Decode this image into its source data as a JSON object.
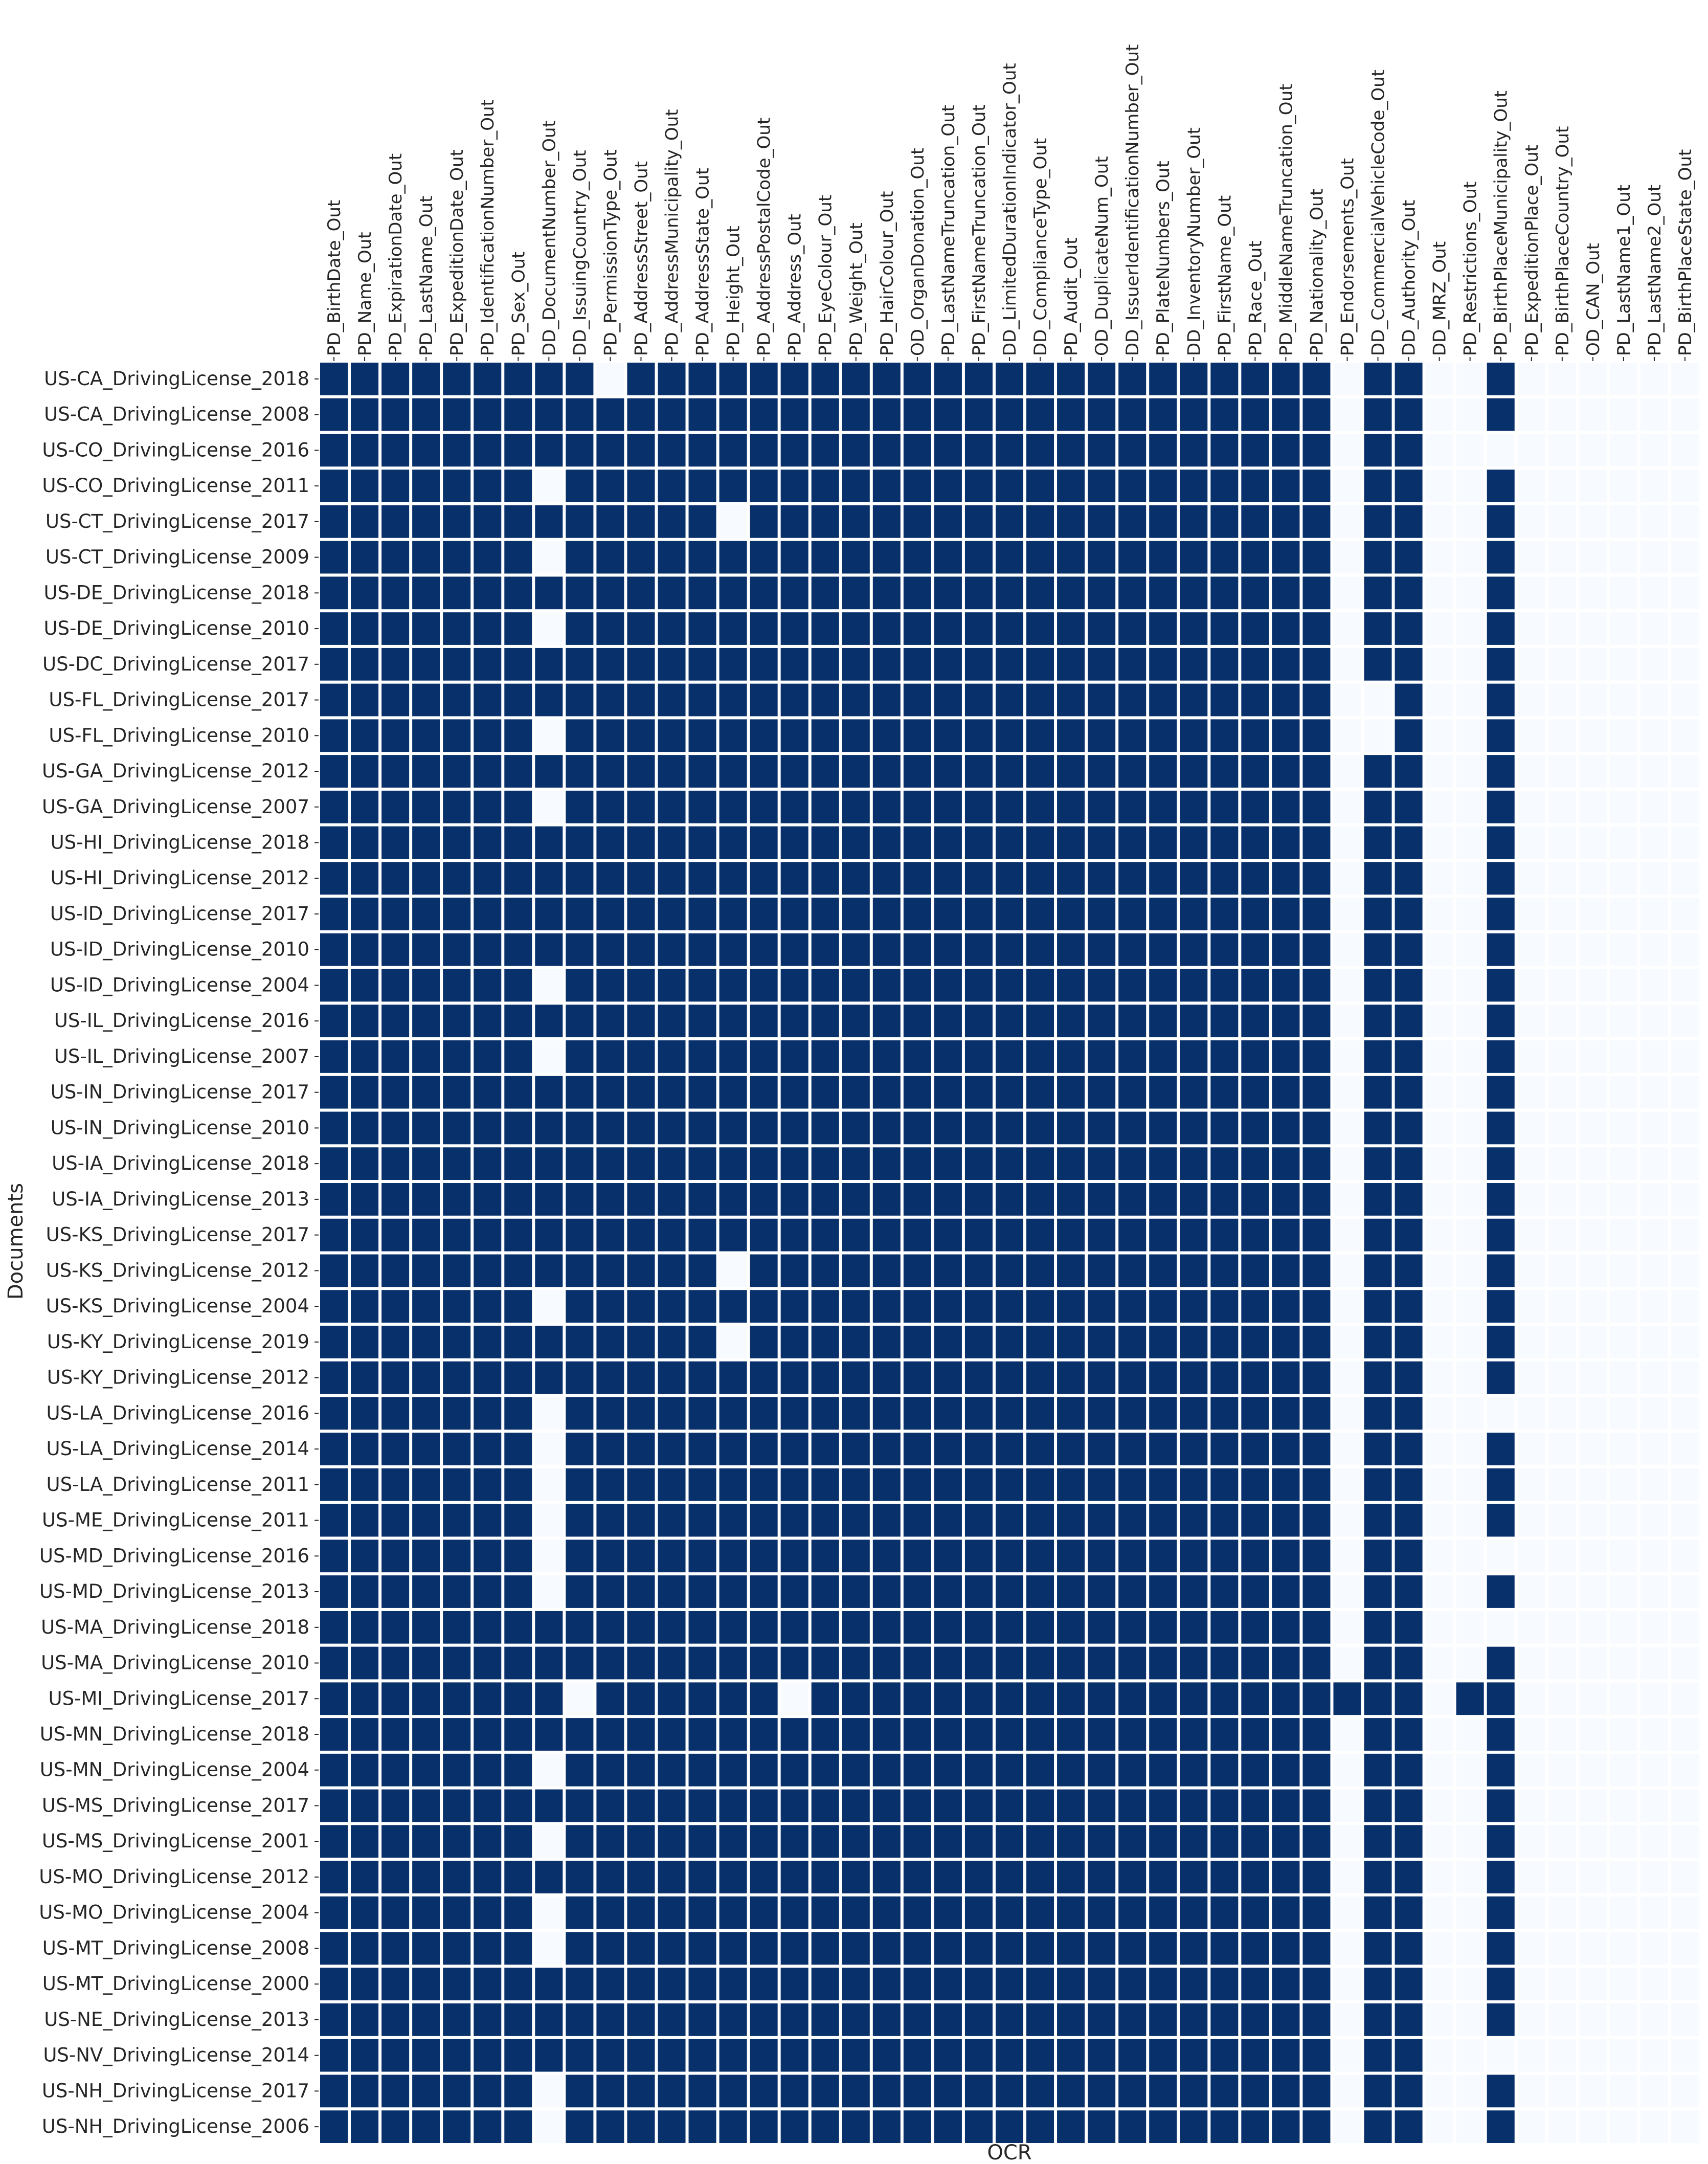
{
  "chart_data": {
    "type": "heatmap",
    "xlabel": "OCR",
    "ylabel": "Documents",
    "title": "",
    "colormap": "Blues",
    "colors": {
      "present": "#08306b",
      "absent": "#f7fbff",
      "gridline": "#ffffff",
      "text": "#262626"
    },
    "columns": [
      "PD_BirthDate_Out",
      "PD_Name_Out",
      "PD_ExpirationDate_Out",
      "PD_LastName_Out",
      "PD_ExpeditionDate_Out",
      "PD_IdentificationNumber_Out",
      "PD_Sex_Out",
      "DD_DocumentNumber_Out",
      "DD_IssuingCountry_Out",
      "PD_PermissionType_Out",
      "PD_AddressStreet_Out",
      "PD_AddressMunicipality_Out",
      "PD_AddressState_Out",
      "PD_Height_Out",
      "PD_AddressPostalCode_Out",
      "PD_Address_Out",
      "PD_EyeColour_Out",
      "PD_Weight_Out",
      "PD_HairColour_Out",
      "OD_OrganDonation_Out",
      "PD_LastNameTruncation_Out",
      "PD_FirstNameTruncation_Out",
      "DD_LimitedDurationIndicator_Out",
      "DD_ComplianceType_Out",
      "PD_Audit_Out",
      "OD_DuplicateNum_Out",
      "DD_IssuerIdentificationNumber_Out",
      "PD_PlateNumbers_Out",
      "DD_InventoryNumber_Out",
      "PD_FirstName_Out",
      "PD_Race_Out",
      "PD_MiddleNameTruncation_Out",
      "PD_Nationality_Out",
      "PD_Endorsements_Out",
      "DD_CommercialVehicleCode_Out",
      "DD_Authority_Out",
      "DD_MRZ_Out",
      "PD_Restrictions_Out",
      "PD_BirthPlaceMunicipality_Out",
      "PD_ExpeditionPlace_Out",
      "PD_BirthPlaceCountry_Out",
      "OD_CAN_Out",
      "PD_LastName1_Out",
      "PD_LastName2_Out",
      "PD_BirthPlaceState_Out"
    ],
    "rows": [
      {
        "label": "US-CA_DrivingLicense_2018",
        "values": "111111111011111111111111111111111011001000000"
      },
      {
        "label": "US-CA_DrivingLicense_2008",
        "values": "111111111111111111111111111111111011001000000"
      },
      {
        "label": "US-CO_DrivingLicense_2016",
        "values": "111111111111111111111111111111111011000000000"
      },
      {
        "label": "US-CO_DrivingLicense_2011",
        "values": "111111101111111111111111111111111011001000000"
      },
      {
        "label": "US-CT_DrivingLicense_2017",
        "values": "111111111111101111111111111111111011001000000"
      },
      {
        "label": "US-CT_DrivingLicense_2009",
        "values": "111111101111111111111111111111111011001000000"
      },
      {
        "label": "US-DE_DrivingLicense_2018",
        "values": "111111111111111111111111111111111011001000000"
      },
      {
        "label": "US-DE_DrivingLicense_2010",
        "values": "111111101111111111111111111111111011001000000"
      },
      {
        "label": "US-DC_DrivingLicense_2017",
        "values": "111111111111111111111111111111111011001000000"
      },
      {
        "label": "US-FL_DrivingLicense_2017",
        "values": "111111111111111111111111111111111001001000000"
      },
      {
        "label": "US-FL_DrivingLicense_2010",
        "values": "111111101111111111111111111111111001001000000"
      },
      {
        "label": "US-GA_DrivingLicense_2012",
        "values": "111111111111111111111111111111111011001000000"
      },
      {
        "label": "US-GA_DrivingLicense_2007",
        "values": "111111101111111111111111111111111011001000000"
      },
      {
        "label": "US-HI_DrivingLicense_2018",
        "values": "111111111111111111111111111111111011001000000"
      },
      {
        "label": "US-HI_DrivingLicense_2012",
        "values": "111111111111111111111111111111111011001000000"
      },
      {
        "label": "US-ID_DrivingLicense_2017",
        "values": "111111111111111111111111111111111011001000000"
      },
      {
        "label": "US-ID_DrivingLicense_2010",
        "values": "111111111111111111111111111111111011001000000"
      },
      {
        "label": "US-ID_DrivingLicense_2004",
        "values": "111111101111111111111111111111111011001000000"
      },
      {
        "label": "US-IL_DrivingLicense_2016",
        "values": "111111111111111111111111111111111011001000000"
      },
      {
        "label": "US-IL_DrivingLicense_2007",
        "values": "111111101111111111111111111111111011001000000"
      },
      {
        "label": "US-IN_DrivingLicense_2017",
        "values": "111111111111111111111111111111111011001000000"
      },
      {
        "label": "US-IN_DrivingLicense_2010",
        "values": "111111111111111111111111111111111011001000000"
      },
      {
        "label": "US-IA_DrivingLicense_2018",
        "values": "111111111111111111111111111111111011001000000"
      },
      {
        "label": "US-IA_DrivingLicense_2013",
        "values": "111111111111111111111111111111111011001000000"
      },
      {
        "label": "US-KS_DrivingLicense_2017",
        "values": "111111111111111111111111111111111011001000000"
      },
      {
        "label": "US-KS_DrivingLicense_2012",
        "values": "111111111111101111111111111111111011001000000"
      },
      {
        "label": "US-KS_DrivingLicense_2004",
        "values": "111111101111111111111111111111111011001000000"
      },
      {
        "label": "US-KY_DrivingLicense_2019",
        "values": "111111111111101111111111111111111011001000000"
      },
      {
        "label": "US-KY_DrivingLicense_2012",
        "values": "111111111111111111111111111111111011001000000"
      },
      {
        "label": "US-LA_DrivingLicense_2016",
        "values": "111111101111111111111111111111111011000000000"
      },
      {
        "label": "US-LA_DrivingLicense_2014",
        "values": "111111101111111111111111111111111011001000000"
      },
      {
        "label": "US-LA_DrivingLicense_2011",
        "values": "111111101111111111111111111111111011001000000"
      },
      {
        "label": "US-ME_DrivingLicense_2011",
        "values": "111111101111111111111111111111111011001000000"
      },
      {
        "label": "US-MD_DrivingLicense_2016",
        "values": "111111101111111111111111111111111011000000000"
      },
      {
        "label": "US-MD_DrivingLicense_2013",
        "values": "111111101111111111111111111111111011001000000"
      },
      {
        "label": "US-MA_DrivingLicense_2018",
        "values": "111111111111111111111111111111111011000000000"
      },
      {
        "label": "US-MA_DrivingLicense_2010",
        "values": "111111111111111111111111111111111011001000000"
      },
      {
        "label": "US-MI_DrivingLicense_2017",
        "values": "111111110111111011111111111111111111011000000"
      },
      {
        "label": "US-MN_DrivingLicense_2018",
        "values": "111111111111111111111111111111111011001000000"
      },
      {
        "label": "US-MN_DrivingLicense_2004",
        "values": "111111101111111111111111111111111011001000000"
      },
      {
        "label": "US-MS_DrivingLicense_2017",
        "values": "111111111111111111111111111111111011001000000"
      },
      {
        "label": "US-MS_DrivingLicense_2001",
        "values": "111111101111111111111111111111111011001000000"
      },
      {
        "label": "US-MO_DrivingLicense_2012",
        "values": "111111111111111111111111111111111011001000000"
      },
      {
        "label": "US-MO_DrivingLicense_2004",
        "values": "111111101111111111111111111111111011001000000"
      },
      {
        "label": "US-MT_DrivingLicense_2008",
        "values": "111111101111111111111111111111111011001000000"
      },
      {
        "label": "US-MT_DrivingLicense_2000",
        "values": "111111111111111111111111111111111011001000000"
      },
      {
        "label": "US-NE_DrivingLicense_2013",
        "values": "111111111111111111111111111111111011001000000"
      },
      {
        "label": "US-NV_DrivingLicense_2014",
        "values": "111111111111111111111111111111111011000000000"
      },
      {
        "label": "US-NH_DrivingLicense_2017",
        "values": "111111101111111111111111111111111011001000000"
      },
      {
        "label": "US-NH_DrivingLicense_2006",
        "values": "111111101111111111111111111111111011001000000"
      }
    ]
  }
}
